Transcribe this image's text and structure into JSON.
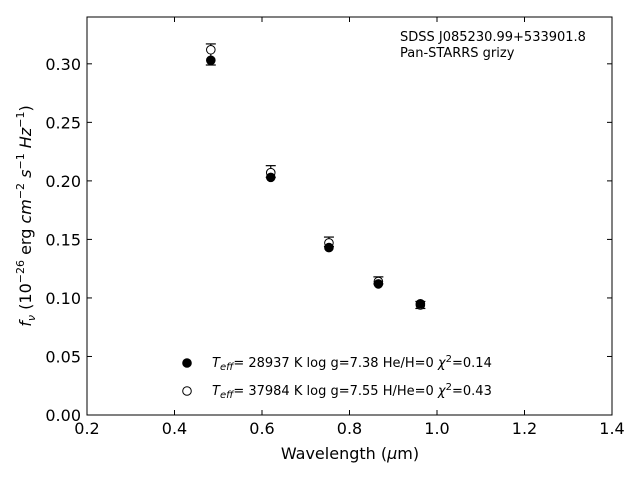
{
  "chart_data": {
    "type": "scatter",
    "annotation_lines": [
      "SDSS J085230.99+533901.8",
      "Pan-STARRS grizy"
    ],
    "xlabel": "Wavelength (μm)",
    "ylabel": "f_ν (10^-26 erg cm^-2 s^-1 Hz^-1)",
    "xlim": [
      0.2,
      1.4
    ],
    "ylim": [
      0.0,
      0.34
    ],
    "xticks": [
      "0.2",
      "0.4",
      "0.6",
      "0.8",
      "1.0",
      "1.2",
      "1.4"
    ],
    "yticks": [
      "0.00",
      "0.05",
      "0.10",
      "0.15",
      "0.20",
      "0.25",
      "0.30"
    ],
    "grid": false,
    "legend_position": "lower-center",
    "series": [
      {
        "name": "Teff= 28937 K  log g=7.38  He/H=0  χ²=0.14",
        "marker": "filled-circle",
        "x": [
          0.483,
          0.62,
          0.753,
          0.866,
          0.962
        ],
        "y": [
          0.303,
          0.203,
          0.143,
          0.112,
          0.095
        ]
      },
      {
        "name": "Teff= 37984 K  log g=7.55  H/He=0  χ²=0.43",
        "marker": "open-circle",
        "x": [
          0.483,
          0.62,
          0.753,
          0.866,
          0.962
        ],
        "y": [
          0.312,
          0.207,
          0.147,
          0.114,
          0.094
        ]
      }
    ],
    "observed": {
      "marker": "errorbar",
      "x": [
        0.483,
        0.62,
        0.753,
        0.866,
        0.962
      ],
      "y": [
        0.308,
        0.208,
        0.148,
        0.115,
        0.094
      ],
      "yerr": [
        0.009,
        0.005,
        0.004,
        0.003,
        0.003
      ]
    },
    "legend": [
      {
        "teff_value": "= 28937 K",
        "details": "log g=7.38  He/H=0",
        "chi_value": "=0.14"
      },
      {
        "teff_value": "= 37984 K",
        "details": "log g=7.55  H/He=0",
        "chi_value": "=0.43"
      }
    ]
  }
}
